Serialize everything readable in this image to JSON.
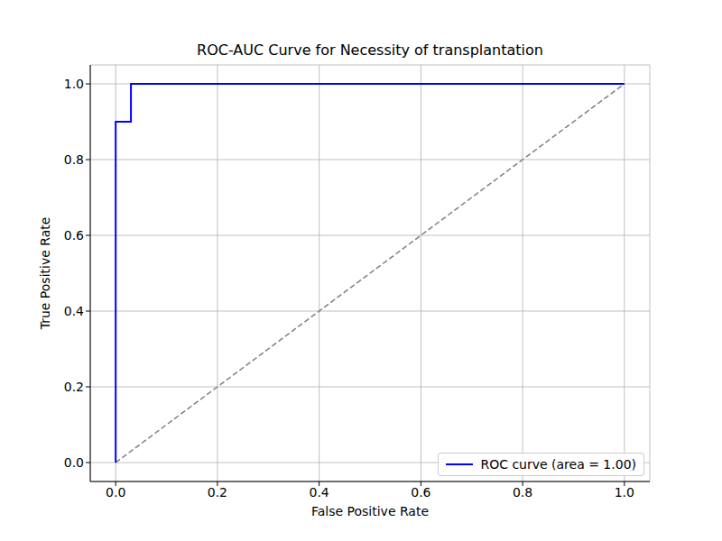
{
  "chart_data": {
    "type": "line",
    "title": "ROC-AUC Curve for Necessity of transplantation",
    "x_label": "False Positive Rate",
    "y_label": "True Positive Rate",
    "series": [
      {
        "name": "ROC curve (area = 1.00)",
        "color": "#0000ff",
        "line_style": "solid",
        "x": [
          0,
          0,
          0.03,
          0.03,
          1
        ],
        "values": [
          0,
          0.9,
          0.9,
          1,
          1
        ]
      },
      {
        "color": "#808080",
        "line_style": "dashed",
        "x": [
          0,
          1
        ],
        "values": [
          0,
          1
        ]
      }
    ],
    "xlim": [
      -0.05,
      1.05
    ],
    "ylim": [
      -0.05,
      1.05
    ],
    "xticks": [
      {
        "value": 0,
        "label": "0.0"
      },
      {
        "value": 0.2,
        "label": "0.2"
      },
      {
        "value": 0.4,
        "label": "0.4"
      },
      {
        "value": 0.6,
        "label": "0.6"
      },
      {
        "value": 0.8,
        "label": "0.8"
      },
      {
        "value": 1,
        "label": "1.0"
      }
    ],
    "yticks": [
      {
        "value": 0,
        "label": "0.0"
      },
      {
        "value": 0.2,
        "label": "0.2"
      },
      {
        "value": 0.4,
        "label": "0.4"
      },
      {
        "value": 0.6,
        "label": "0.6"
      },
      {
        "value": 0.8,
        "label": "0.8"
      },
      {
        "value": 1,
        "label": "1.0"
      }
    ],
    "grid": true,
    "legend": "lower right"
  }
}
